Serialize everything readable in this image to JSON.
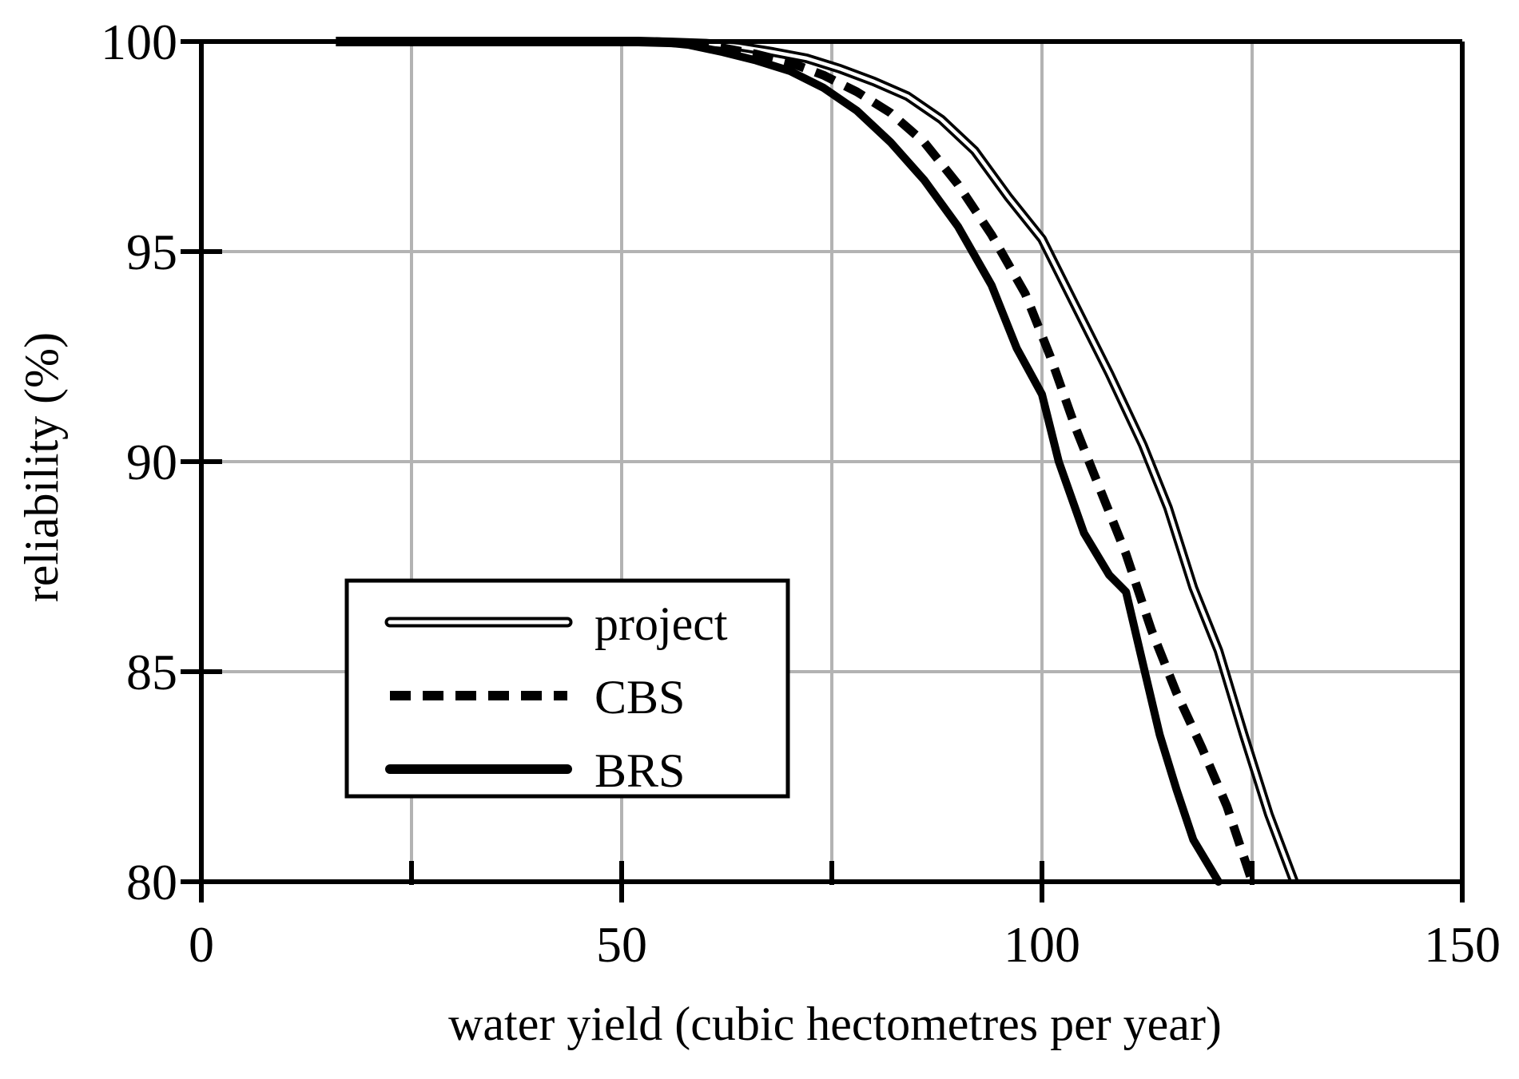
{
  "chart_data": {
    "type": "line",
    "title": "",
    "xlabel": "water yield (cubic hectometres per year)",
    "ylabel": "reliability (%)",
    "xlim": [
      0,
      150
    ],
    "ylim": [
      80,
      100
    ],
    "xticks": [
      0,
      50,
      100,
      150
    ],
    "yticks": [
      80,
      85,
      90,
      95,
      100
    ],
    "x_minor_ticks": [
      25,
      75,
      125
    ],
    "x_gridlines": [
      25,
      50,
      75,
      100,
      125
    ],
    "y_gridlines": [
      85,
      90,
      95
    ],
    "grid": true,
    "legend": {
      "position": "bottom-left"
    },
    "series": [
      {
        "name": "project",
        "style": "double-line",
        "color": "#000000",
        "points": [
          [
            16,
            100
          ],
          [
            40,
            100
          ],
          [
            52,
            100
          ],
          [
            56,
            99.98
          ],
          [
            60,
            99.95
          ],
          [
            64,
            99.88
          ],
          [
            68,
            99.75
          ],
          [
            72,
            99.6
          ],
          [
            76,
            99.35
          ],
          [
            80,
            99.05
          ],
          [
            84,
            98.7
          ],
          [
            88,
            98.15
          ],
          [
            92,
            97.4
          ],
          [
            96,
            96.3
          ],
          [
            100,
            95.3
          ],
          [
            104,
            93.7
          ],
          [
            108,
            92.1
          ],
          [
            112,
            90.4
          ],
          [
            115,
            88.9
          ],
          [
            118,
            87.0
          ],
          [
            121,
            85.5
          ],
          [
            124,
            83.5
          ],
          [
            127,
            81.6
          ],
          [
            130,
            80.0
          ]
        ]
      },
      {
        "name": "CBS",
        "style": "dashed",
        "color": "#000000",
        "points": [
          [
            54,
            100
          ],
          [
            58,
            99.95
          ],
          [
            62,
            99.85
          ],
          [
            66,
            99.7
          ],
          [
            70,
            99.5
          ],
          [
            74,
            99.2
          ],
          [
            78,
            98.8
          ],
          [
            82,
            98.3
          ],
          [
            86,
            97.6
          ],
          [
            90,
            96.6
          ],
          [
            94,
            95.4
          ],
          [
            98,
            94.0
          ],
          [
            101,
            92.5
          ],
          [
            104,
            90.8
          ],
          [
            107,
            89.3
          ],
          [
            110,
            87.8
          ],
          [
            113,
            86.0
          ],
          [
            116,
            84.5
          ],
          [
            119,
            83.2
          ],
          [
            122,
            81.8
          ],
          [
            125,
            80.0
          ]
        ]
      },
      {
        "name": "BRS",
        "style": "solid",
        "color": "#000000",
        "points": [
          [
            54,
            100
          ],
          [
            58,
            99.92
          ],
          [
            62,
            99.75
          ],
          [
            66,
            99.55
          ],
          [
            70,
            99.3
          ],
          [
            74,
            98.9
          ],
          [
            78,
            98.35
          ],
          [
            82,
            97.6
          ],
          [
            86,
            96.7
          ],
          [
            90,
            95.6
          ],
          [
            94,
            94.2
          ],
          [
            97,
            92.7
          ],
          [
            100,
            91.6
          ],
          [
            102,
            90.0
          ],
          [
            105,
            88.3
          ],
          [
            108,
            87.3
          ],
          [
            110,
            86.9
          ],
          [
            112,
            85.2
          ],
          [
            114,
            83.5
          ],
          [
            116,
            82.2
          ],
          [
            118,
            81.0
          ],
          [
            121,
            80.0
          ]
        ]
      }
    ]
  }
}
